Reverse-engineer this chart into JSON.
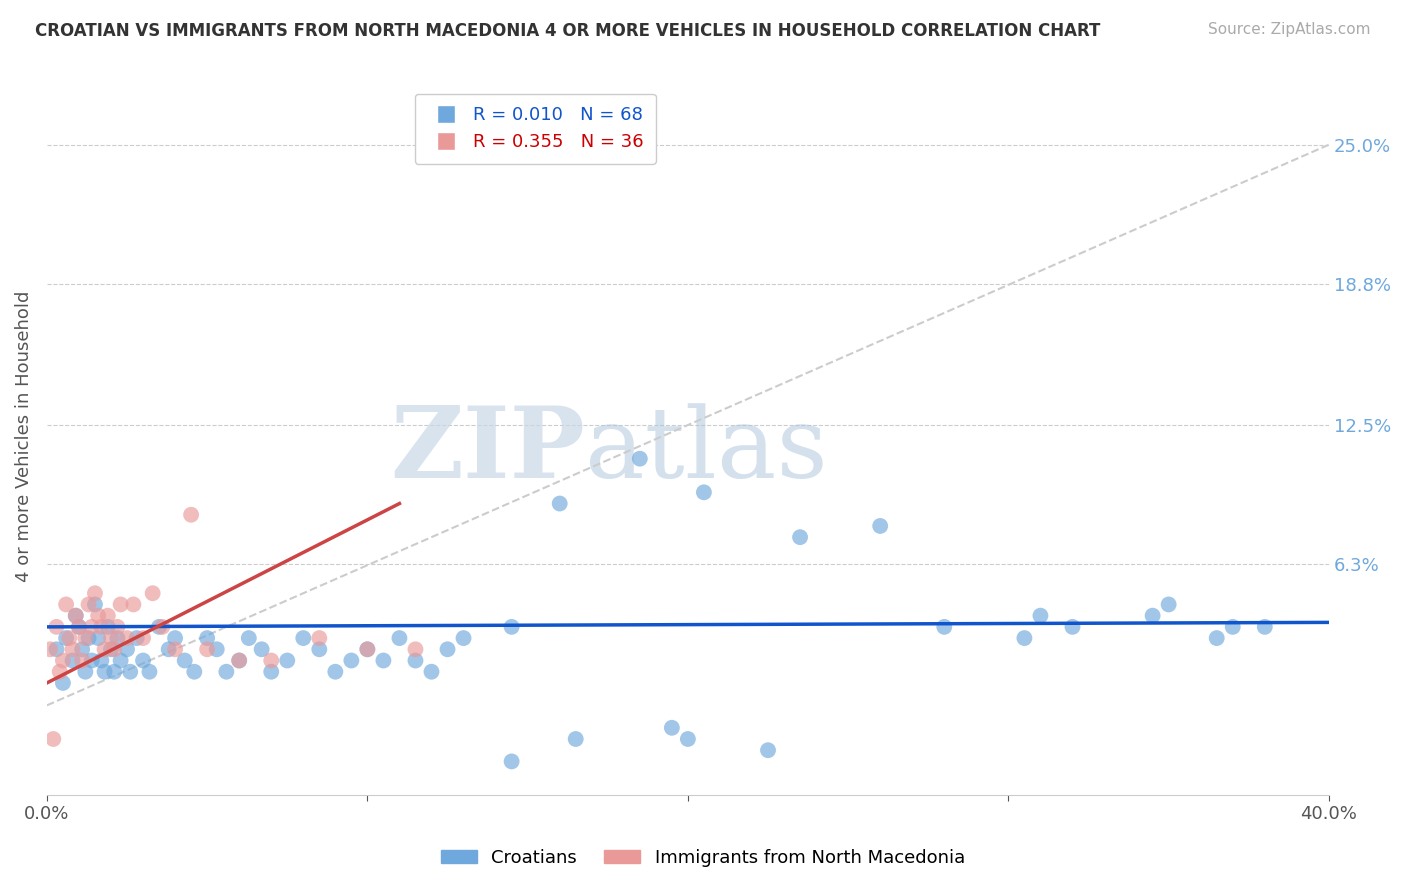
{
  "title": "CROATIAN VS IMMIGRANTS FROM NORTH MACEDONIA 4 OR MORE VEHICLES IN HOUSEHOLD CORRELATION CHART",
  "source": "Source: ZipAtlas.com",
  "ylabel": "4 or more Vehicles in Household",
  "xlabel": "",
  "xlim": [
    0.0,
    40.0
  ],
  "ylim": [
    -4.0,
    28.0
  ],
  "y_tick_labels_right": [
    "6.3%",
    "12.5%",
    "18.8%",
    "25.0%"
  ],
  "y_tick_vals_right": [
    6.3,
    12.5,
    18.8,
    25.0
  ],
  "blue_color": "#6fa8dc",
  "pink_color": "#ea9999",
  "trend_blue_color": "#1155cc",
  "trend_pink_color": "#cc4444",
  "diagonal_color": "#cccccc",
  "legend_R_blue": "R = 0.010",
  "legend_N_blue": "N = 68",
  "legend_R_pink": "R = 0.355",
  "legend_N_pink": "N = 36",
  "legend_label_blue": "Croatians",
  "legend_label_pink": "Immigrants from North Macedonia",
  "watermark_zip": "ZIP",
  "watermark_atlas": "atlas",
  "blue_trend_y_intercept": 3.5,
  "blue_trend_slope": 0.005,
  "pink_trend_start_x": 0.0,
  "pink_trend_start_y": 1.0,
  "pink_trend_end_x": 11.0,
  "pink_trend_end_y": 9.0,
  "blue_x": [
    0.3,
    0.5,
    0.6,
    0.8,
    0.9,
    1.0,
    1.1,
    1.2,
    1.3,
    1.4,
    1.5,
    1.6,
    1.7,
    1.8,
    1.9,
    2.0,
    2.1,
    2.2,
    2.3,
    2.5,
    2.6,
    2.8,
    3.0,
    3.2,
    3.5,
    3.8,
    4.0,
    4.3,
    4.6,
    5.0,
    5.3,
    5.6,
    6.0,
    6.3,
    6.7,
    7.0,
    7.5,
    8.0,
    8.5,
    9.0,
    9.5,
    10.0,
    10.5,
    11.0,
    11.5,
    12.0,
    12.5,
    13.0,
    14.5,
    16.0,
    18.5,
    20.5,
    23.5,
    26.0,
    28.0,
    30.5,
    32.0,
    34.5,
    36.5,
    20.0,
    22.5,
    19.5,
    14.5,
    16.5,
    38.0,
    35.0,
    37.0,
    31.0
  ],
  "blue_y": [
    2.5,
    1.0,
    3.0,
    2.0,
    4.0,
    3.5,
    2.5,
    1.5,
    3.0,
    2.0,
    4.5,
    3.0,
    2.0,
    1.5,
    3.5,
    2.5,
    1.5,
    3.0,
    2.0,
    2.5,
    1.5,
    3.0,
    2.0,
    1.5,
    3.5,
    2.5,
    3.0,
    2.0,
    1.5,
    3.0,
    2.5,
    1.5,
    2.0,
    3.0,
    2.5,
    1.5,
    2.0,
    3.0,
    2.5,
    1.5,
    2.0,
    2.5,
    2.0,
    3.0,
    2.0,
    1.5,
    2.5,
    3.0,
    3.5,
    9.0,
    11.0,
    9.5,
    7.5,
    8.0,
    3.5,
    3.0,
    3.5,
    4.0,
    3.0,
    -1.5,
    -2.0,
    -1.0,
    -2.5,
    -1.5,
    3.5,
    4.5,
    3.5,
    4.0
  ],
  "pink_x": [
    0.1,
    0.3,
    0.4,
    0.5,
    0.6,
    0.7,
    0.8,
    0.9,
    1.0,
    1.1,
    1.2,
    1.3,
    1.4,
    1.5,
    1.6,
    1.7,
    1.8,
    1.9,
    2.0,
    2.1,
    2.2,
    2.3,
    2.5,
    2.7,
    3.0,
    3.3,
    3.6,
    4.0,
    4.5,
    5.0,
    6.0,
    7.0,
    8.5,
    10.0,
    11.5,
    0.2
  ],
  "pink_y": [
    2.5,
    3.5,
    1.5,
    2.0,
    4.5,
    3.0,
    2.5,
    4.0,
    3.5,
    2.0,
    3.0,
    4.5,
    3.5,
    5.0,
    4.0,
    3.5,
    2.5,
    4.0,
    3.0,
    2.5,
    3.5,
    4.5,
    3.0,
    4.5,
    3.0,
    5.0,
    3.5,
    2.5,
    8.5,
    2.5,
    2.0,
    2.0,
    3.0,
    2.5,
    2.5,
    -1.5
  ]
}
